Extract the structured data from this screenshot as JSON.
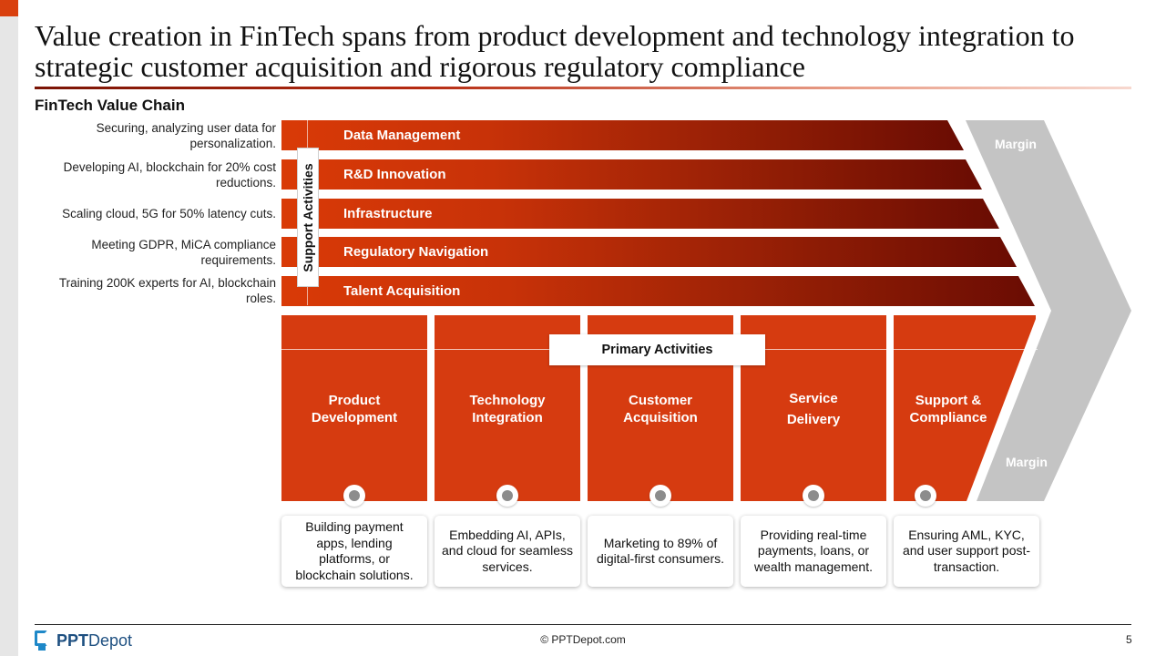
{
  "title": "Value creation in FinTech spans from product development and technology integration to strategic customer acquisition and rigorous regulatory compliance",
  "subtitle": "FinTech Value Chain",
  "support_tag": "Support Activities",
  "primary_tag": "Primary Activities",
  "margin_label": "Margin",
  "support_activities": [
    {
      "label": "Data Management",
      "description": "Securing, analyzing user data for personalization."
    },
    {
      "label": "R&D Innovation",
      "description": "Developing AI, blockchain for 20% cost reductions."
    },
    {
      "label": "Infrastructure",
      "description": "Scaling cloud, 5G for 50% latency cuts."
    },
    {
      "label": "Regulatory Navigation",
      "description": "Meeting GDPR, MiCA compliance requirements."
    },
    {
      "label": "Talent Acquisition",
      "description": "Training 200K experts for AI, blockchain roles."
    }
  ],
  "primary_activities": [
    {
      "label_line1": "Product",
      "label_line2": "Development",
      "description": "Building payment apps, lending platforms, or blockchain solutions."
    },
    {
      "label_line1": "Technology",
      "label_line2": "Integration",
      "description": "Embedding AI, APIs, and cloud for seamless services."
    },
    {
      "label_line1": "Customer",
      "label_line2": "Acquisition",
      "description": "Marketing to 89% of digital-first consumers."
    },
    {
      "label_line1": "Service",
      "label_line2": "Delivery",
      "description": "Providing real-time payments, loans, or wealth management."
    },
    {
      "label_line1": "Support &",
      "label_line2": "Compliance",
      "description": "Ensuring AML, KYC, and user support post-transaction."
    }
  ],
  "footer": {
    "logo_bold": "PPT",
    "logo_rest": "Depot",
    "copyright": "© PPTDepot.com",
    "page_number": "5"
  },
  "colors": {
    "accent": "#d63b10",
    "band_dark": "#6a0c03",
    "chevron": "#c4c4c4",
    "logo": "#1e88c8"
  }
}
